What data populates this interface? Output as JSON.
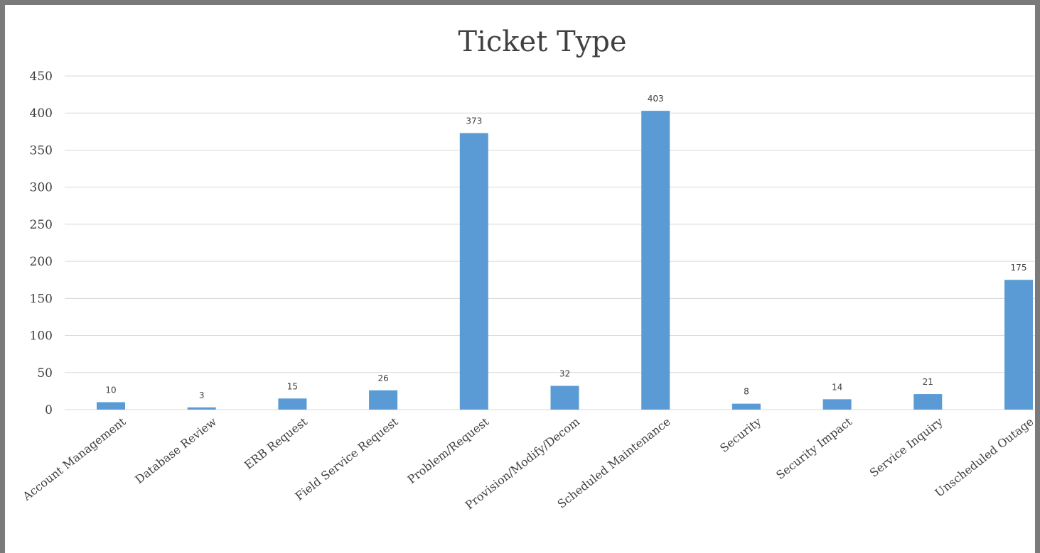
{
  "chart_data": {
    "type": "bar",
    "title": "Ticket Type",
    "xlabel": "",
    "ylabel": "",
    "categories": [
      "Account Management",
      "Database Review",
      "ERB Request",
      "Field Service Request",
      "Problem/Request",
      "Provision/Modify/Decom",
      "Scheduled Maintenance",
      "Security",
      "Security Impact",
      "Service Inquiry",
      "Unscheduled Outage"
    ],
    "values": [
      10,
      3,
      15,
      26,
      373,
      32,
      403,
      8,
      14,
      21,
      175
    ],
    "data_labels": [
      "10",
      "3",
      "15",
      "26",
      "373",
      "32",
      "403",
      "8",
      "14",
      "21",
      "175"
    ],
    "ylim": [
      0,
      450
    ],
    "yticks": [
      0,
      50,
      100,
      150,
      200,
      250,
      300,
      350,
      400,
      450
    ],
    "ytick_labels": [
      "0",
      "50",
      "100",
      "150",
      "200",
      "250",
      "300",
      "350",
      "400",
      "450"
    ],
    "grid": true,
    "legend": "none",
    "colors": {
      "bar": "#5b9bd5",
      "grid": "#d9d9d9",
      "text": "#404040",
      "frame": "#7a7a7a"
    }
  }
}
